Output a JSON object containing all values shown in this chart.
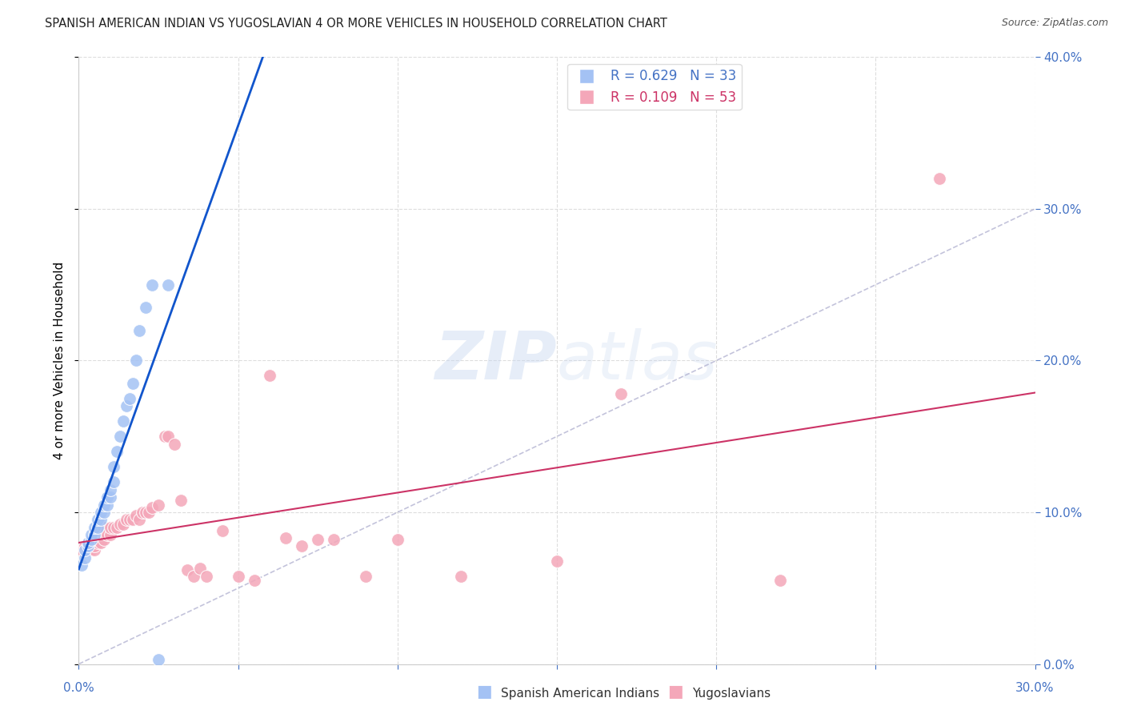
{
  "title": "SPANISH AMERICAN INDIAN VS YUGOSLAVIAN 4 OR MORE VEHICLES IN HOUSEHOLD CORRELATION CHART",
  "source": "Source: ZipAtlas.com",
  "ylabel": "4 or more Vehicles in Household",
  "xlim": [
    0.0,
    0.3
  ],
  "ylim": [
    0.0,
    0.4
  ],
  "xticks": [
    0.0,
    0.05,
    0.1,
    0.15,
    0.2,
    0.25,
    0.3
  ],
  "yticks": [
    0.0,
    0.1,
    0.2,
    0.3,
    0.4
  ],
  "r_blue": 0.629,
  "n_blue": 33,
  "r_pink": 0.109,
  "n_pink": 53,
  "legend_label_blue": "Spanish American Indians",
  "legend_label_pink": "Yugoslavians",
  "blue_color": "#a4c2f4",
  "pink_color": "#f4a7b9",
  "blue_line_color": "#1155cc",
  "pink_line_color": "#cc3366",
  "diag_color": "#aaaacc",
  "blue_x": [
    0.001,
    0.002,
    0.002,
    0.003,
    0.003,
    0.004,
    0.004,
    0.005,
    0.005,
    0.006,
    0.006,
    0.007,
    0.007,
    0.008,
    0.008,
    0.009,
    0.009,
    0.01,
    0.01,
    0.011,
    0.011,
    0.012,
    0.013,
    0.014,
    0.015,
    0.016,
    0.017,
    0.018,
    0.019,
    0.021,
    0.023,
    0.025,
    0.028
  ],
  "blue_y": [
    0.065,
    0.07,
    0.075,
    0.078,
    0.08,
    0.082,
    0.085,
    0.085,
    0.09,
    0.09,
    0.095,
    0.095,
    0.1,
    0.1,
    0.105,
    0.105,
    0.11,
    0.11,
    0.115,
    0.12,
    0.13,
    0.14,
    0.15,
    0.16,
    0.17,
    0.175,
    0.185,
    0.2,
    0.22,
    0.235,
    0.25,
    0.003,
    0.25
  ],
  "pink_x": [
    0.001,
    0.002,
    0.003,
    0.003,
    0.004,
    0.004,
    0.005,
    0.005,
    0.006,
    0.007,
    0.007,
    0.008,
    0.008,
    0.009,
    0.01,
    0.01,
    0.011,
    0.012,
    0.013,
    0.014,
    0.015,
    0.016,
    0.017,
    0.018,
    0.019,
    0.02,
    0.021,
    0.022,
    0.023,
    0.025,
    0.027,
    0.028,
    0.03,
    0.032,
    0.034,
    0.036,
    0.038,
    0.04,
    0.045,
    0.05,
    0.055,
    0.06,
    0.065,
    0.07,
    0.075,
    0.08,
    0.09,
    0.1,
    0.12,
    0.15,
    0.17,
    0.22,
    0.27
  ],
  "pink_y": [
    0.075,
    0.078,
    0.075,
    0.08,
    0.075,
    0.08,
    0.075,
    0.078,
    0.08,
    0.08,
    0.085,
    0.082,
    0.09,
    0.085,
    0.085,
    0.09,
    0.09,
    0.09,
    0.092,
    0.092,
    0.095,
    0.095,
    0.095,
    0.098,
    0.095,
    0.1,
    0.1,
    0.1,
    0.103,
    0.105,
    0.15,
    0.15,
    0.145,
    0.108,
    0.062,
    0.058,
    0.063,
    0.058,
    0.088,
    0.058,
    0.055,
    0.19,
    0.083,
    0.078,
    0.082,
    0.082,
    0.058,
    0.082,
    0.058,
    0.068,
    0.178,
    0.055,
    0.32
  ]
}
